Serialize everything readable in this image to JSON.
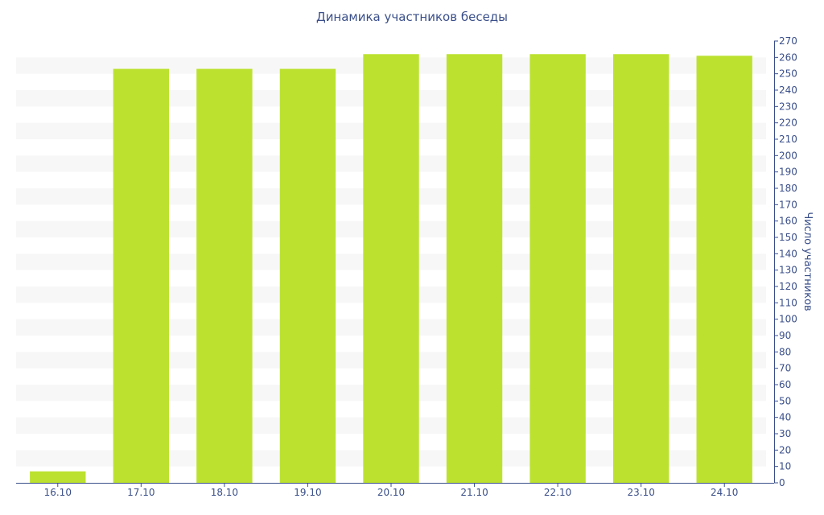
{
  "chart_data": {
    "type": "bar",
    "title": "Динамика участников беседы",
    "xlabel": "",
    "ylabel": "Число участников",
    "categories": [
      "16.10",
      "17.10",
      "18.10",
      "19.10",
      "20.10",
      "21.10",
      "22.10",
      "23.10",
      "24.10"
    ],
    "values": [
      7,
      253,
      253,
      253,
      262,
      262,
      262,
      262,
      261
    ],
    "ylim": [
      0,
      270
    ],
    "ytick_step": 10,
    "y_axis_position": "right",
    "grid": "alternating-bands",
    "bar_color": "#bce22f",
    "band_color": "#f7f7f7",
    "text_color": "#3a4f8a",
    "axis_color": "#3a4f8a"
  }
}
